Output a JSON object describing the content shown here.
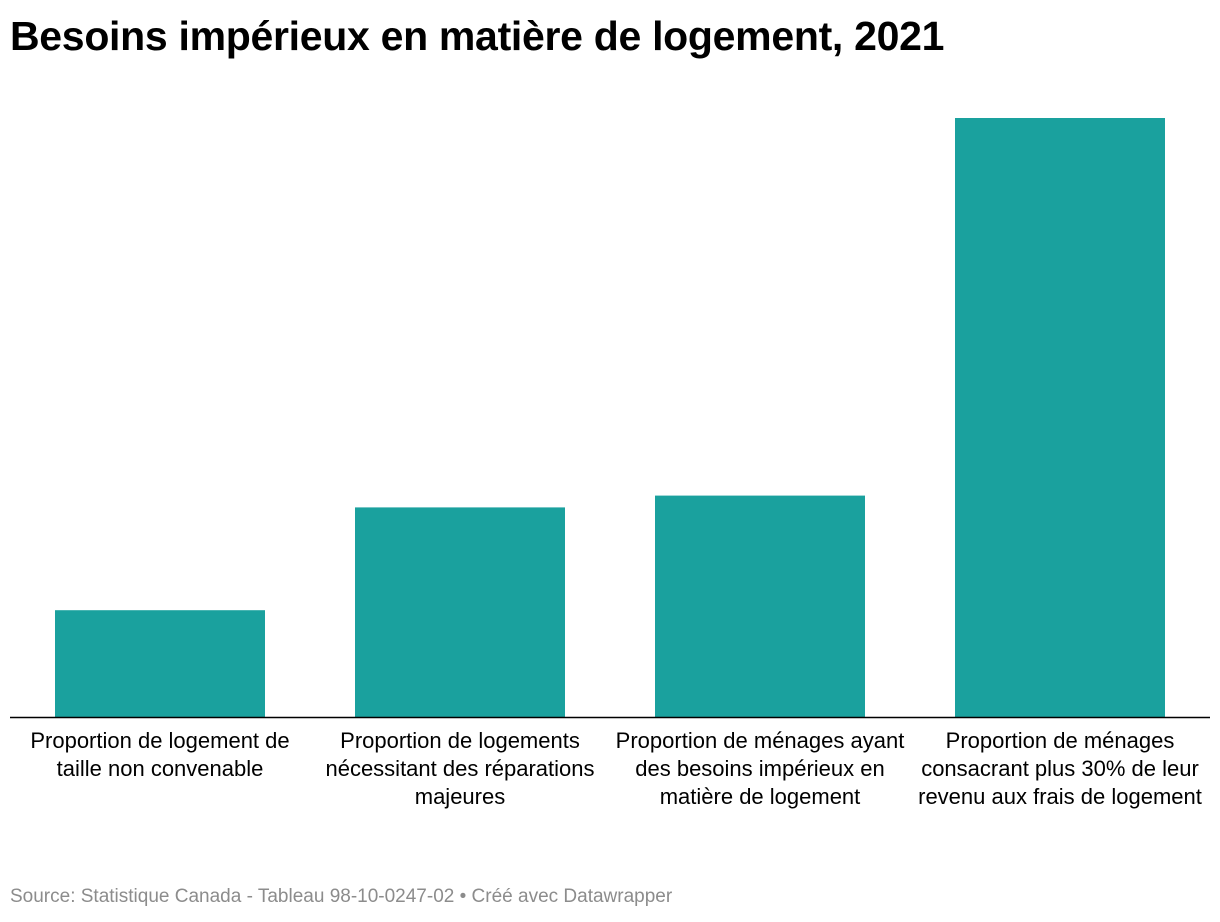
{
  "chart_data": {
    "type": "bar",
    "title": "Besoins impérieux en matière de logement, 2021",
    "categories": [
      "Proportion de logement de taille non convenable",
      "Proportion de logements nécessitant des réparations majeures",
      "Proportion de ménages ayant des besoins impérieux en matière de logement",
      "Proportion de ménages consacrant plus 30% de leur revenu aux frais de logement"
    ],
    "values": [
      5.4,
      10.6,
      11.2,
      30.3
    ],
    "value_unit": "%",
    "ylim": [
      0,
      30.3
    ],
    "y_axis_visible": false,
    "grid": false,
    "bar_color": "#1aa19e",
    "baseline_color": "#000000",
    "xlabel": "",
    "ylabel": ""
  },
  "footer": {
    "source": "Source: Statistique Canada - Tableau 98-10-0247-02 • Créé avec Datawrapper"
  }
}
